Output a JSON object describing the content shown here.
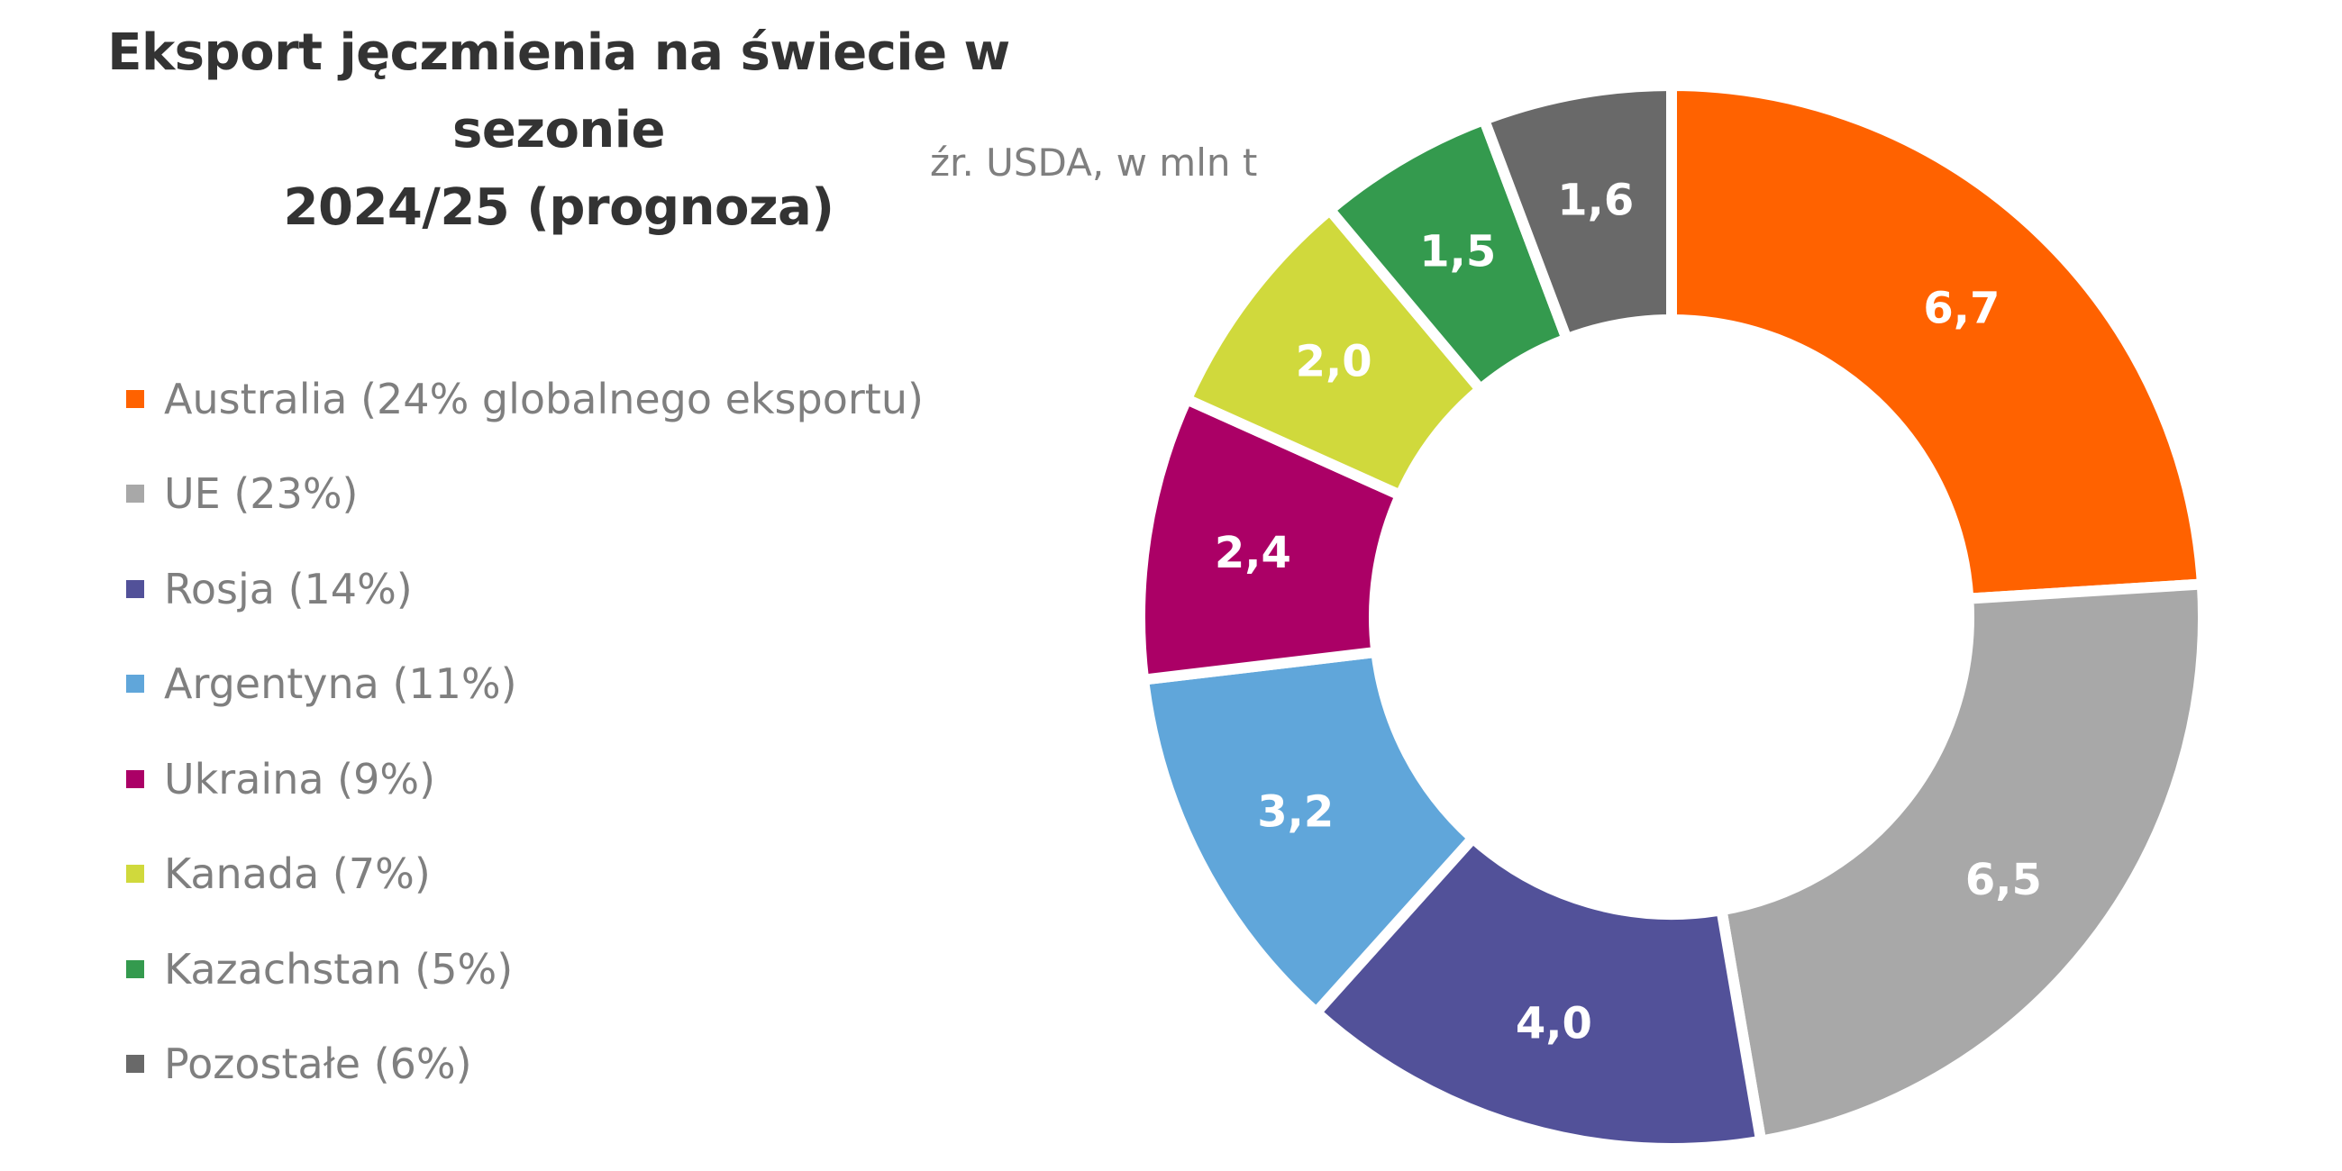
{
  "chart_data": {
    "type": "pie",
    "variant": "donut",
    "title_line1": "Eksport jęczmienia na świecie w sezonie",
    "title_line2": "2024/25 (prognoza)",
    "subtitle": "źr. USDA, w mln t",
    "legend_position": "left",
    "start": "top",
    "direction": "clockwise",
    "categories": [
      "Australia (24% globalnego eksportu)",
      "UE (23%)",
      "Rosja (14%)",
      "Argentyna (11%)",
      "Ukraina (9%)",
      "Kanada (7%)",
      "Kazachstan (5%)",
      "Pozostałe (6%)"
    ],
    "values": [
      6.7,
      6.5,
      4.0,
      3.2,
      2.4,
      2.0,
      1.5,
      1.6
    ],
    "data_labels": [
      "6,7",
      "6,5",
      "4,0",
      "3,2",
      "2,4",
      "2,0",
      "1,5",
      "1,6"
    ],
    "colors": [
      "#FF6200",
      "#A8A8A8",
      "#525199",
      "#60A6DA",
      "#AB0066",
      "#D0D93C",
      "#349A4E",
      "#696969"
    ]
  }
}
